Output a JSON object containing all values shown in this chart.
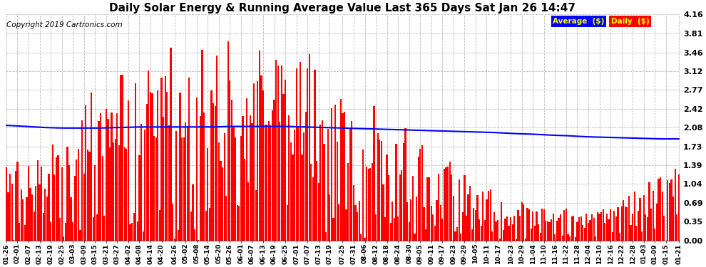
{
  "title": "Daily Solar Energy & Running Average Value Last 365 Days Sat Jan 26 14:47",
  "copyright": "Copyright 2019 Cartronics.com",
  "ylim": [
    0.0,
    4.16
  ],
  "yticks": [
    0.0,
    0.35,
    0.69,
    1.04,
    1.39,
    1.73,
    2.08,
    2.42,
    2.77,
    3.12,
    3.46,
    3.81,
    4.16
  ],
  "bar_color": "#FF0000",
  "avg_line_color": "#0000FF",
  "background_color": "#FFFFFF",
  "grid_color": "#AAAAAA",
  "title_fontsize": 11,
  "copyright_fontsize": 7.5,
  "legend_avg_bg": "#0000FF",
  "legend_daily_bg": "#FF0000",
  "legend_text_color": "#FFFF00",
  "x_tick_labels": [
    "01-26",
    "02-01",
    "02-07",
    "02-13",
    "02-19",
    "02-25",
    "03-03",
    "03-09",
    "03-15",
    "03-21",
    "03-27",
    "04-02",
    "04-08",
    "04-14",
    "04-20",
    "04-26",
    "05-02",
    "05-08",
    "05-14",
    "05-20",
    "05-26",
    "06-01",
    "06-07",
    "06-13",
    "06-19",
    "06-25",
    "07-01",
    "07-07",
    "07-13",
    "07-19",
    "07-25",
    "07-31",
    "08-06",
    "08-12",
    "08-18",
    "08-24",
    "08-30",
    "09-05",
    "09-11",
    "09-17",
    "09-23",
    "09-29",
    "10-05",
    "10-11",
    "10-17",
    "10-23",
    "10-29",
    "11-04",
    "11-10",
    "11-16",
    "11-22",
    "11-28",
    "12-04",
    "12-10",
    "12-16",
    "12-22",
    "12-28",
    "01-03",
    "01-09",
    "01-15",
    "01-21"
  ],
  "num_bars": 365,
  "avg_line_points": [
    2.12,
    2.1,
    2.08,
    2.07,
    2.07,
    2.07,
    2.08,
    2.09,
    2.09,
    2.09,
    2.09,
    2.09,
    2.1,
    2.1,
    2.1,
    2.1,
    2.09,
    2.08,
    2.07,
    2.06,
    2.05,
    2.04,
    2.03,
    2.02,
    2.01,
    2.0,
    1.99,
    1.97,
    1.96,
    1.94,
    1.93,
    1.91,
    1.9,
    1.89,
    1.88,
    1.87,
    1.87
  ]
}
